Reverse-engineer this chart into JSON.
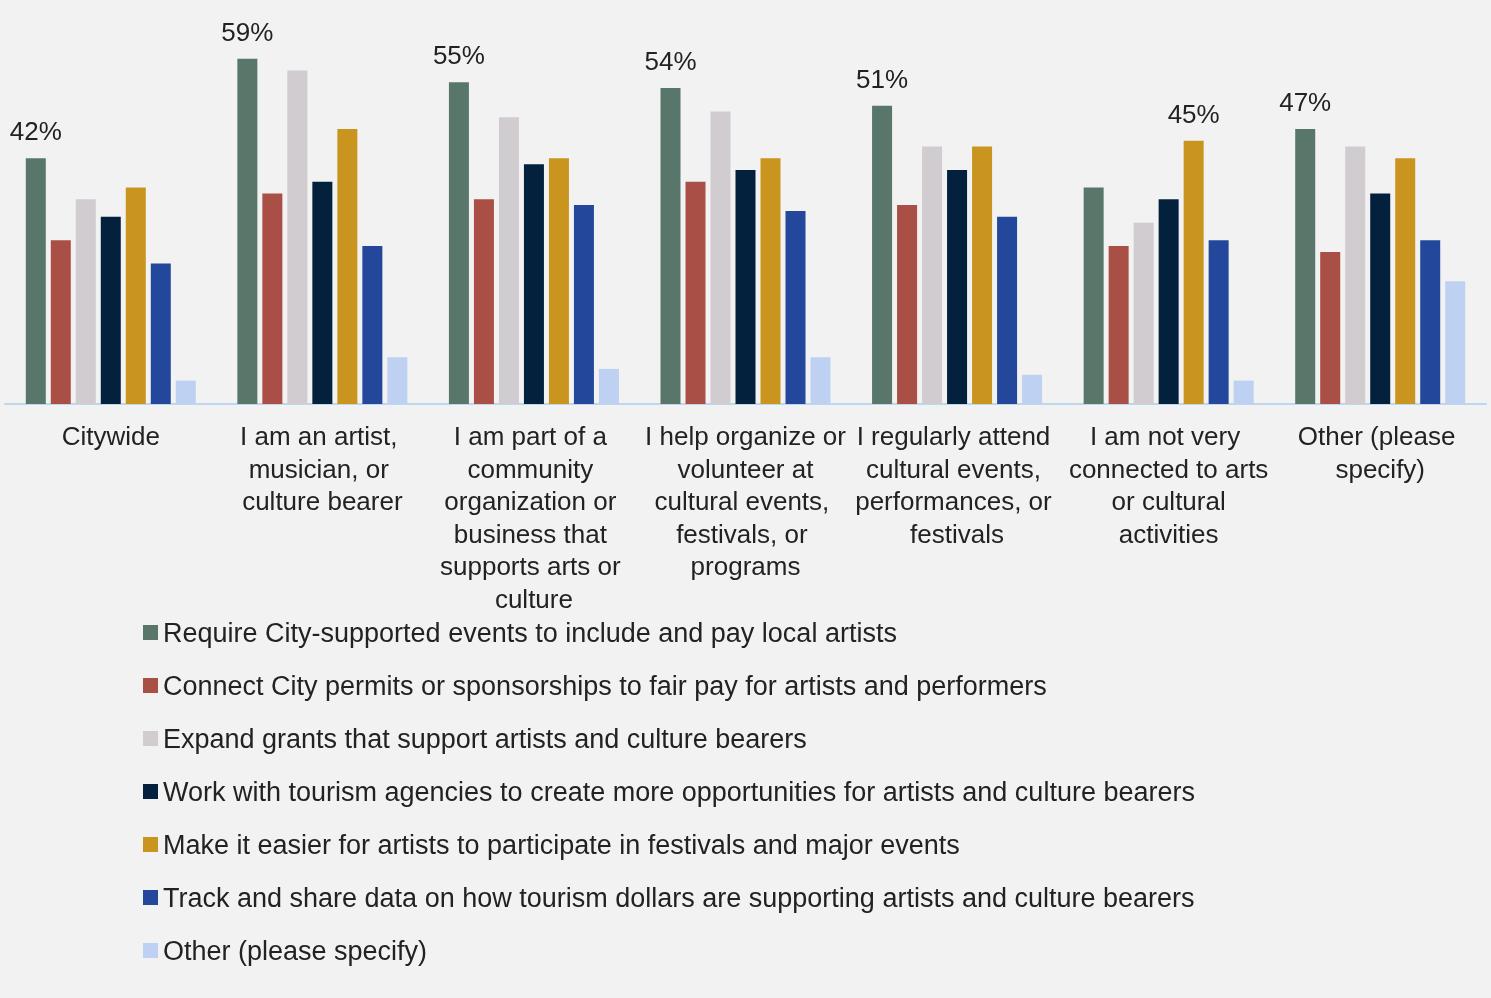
{
  "chart_data": {
    "type": "bar",
    "categories": [
      "Citywide",
      "I am an artist, musician, or culture bearer",
      "I am part of a community organization or business that supports arts or culture",
      "I help organize or volunteer at cultural events, festivals, or programs",
      "I regularly attend cultural events, performances, or festivals",
      "I am not very connected to arts or cultural activities",
      "Other (please specify)"
    ],
    "series": [
      {
        "name": "Require City-supported events to include and pay local artists",
        "color": "#58776a",
        "values": [
          42,
          59,
          55,
          54,
          51,
          37,
          47
        ],
        "value_labels": [
          "42%",
          "59%",
          "55%",
          "54%",
          "51%",
          null,
          "47%"
        ]
      },
      {
        "name": "Connect City permits or sponsorships to fair pay for artists and performers",
        "color": "#a94f45",
        "values": [
          28,
          36,
          35,
          38,
          34,
          27,
          26
        ]
      },
      {
        "name": "Expand grants that support artists and culture bearers",
        "color": "#d0ccd0",
        "values": [
          35,
          57,
          49,
          50,
          44,
          31,
          44
        ]
      },
      {
        "name": "Work with tourism agencies to create more opportunities for artists and culture bearers",
        "color": "#03203c",
        "values": [
          32,
          38,
          41,
          40,
          40,
          35,
          36
        ]
      },
      {
        "name": "Make it easier for artists to participate in festivals and major events",
        "color": "#c9951e",
        "values": [
          37,
          47,
          42,
          42,
          44,
          45,
          42
        ],
        "value_labels": [
          null,
          null,
          null,
          null,
          null,
          "45%",
          null
        ]
      },
      {
        "name": "Track and share data on how tourism dollars are supporting artists and culture bearers",
        "color": "#23479a",
        "values": [
          24,
          27,
          34,
          33,
          32,
          28,
          28
        ]
      },
      {
        "name": "Other (please specify)",
        "color": "#bfd1f2",
        "values": [
          4,
          8,
          6,
          8,
          5,
          4,
          21
        ]
      }
    ],
    "legend": "bottom"
  }
}
